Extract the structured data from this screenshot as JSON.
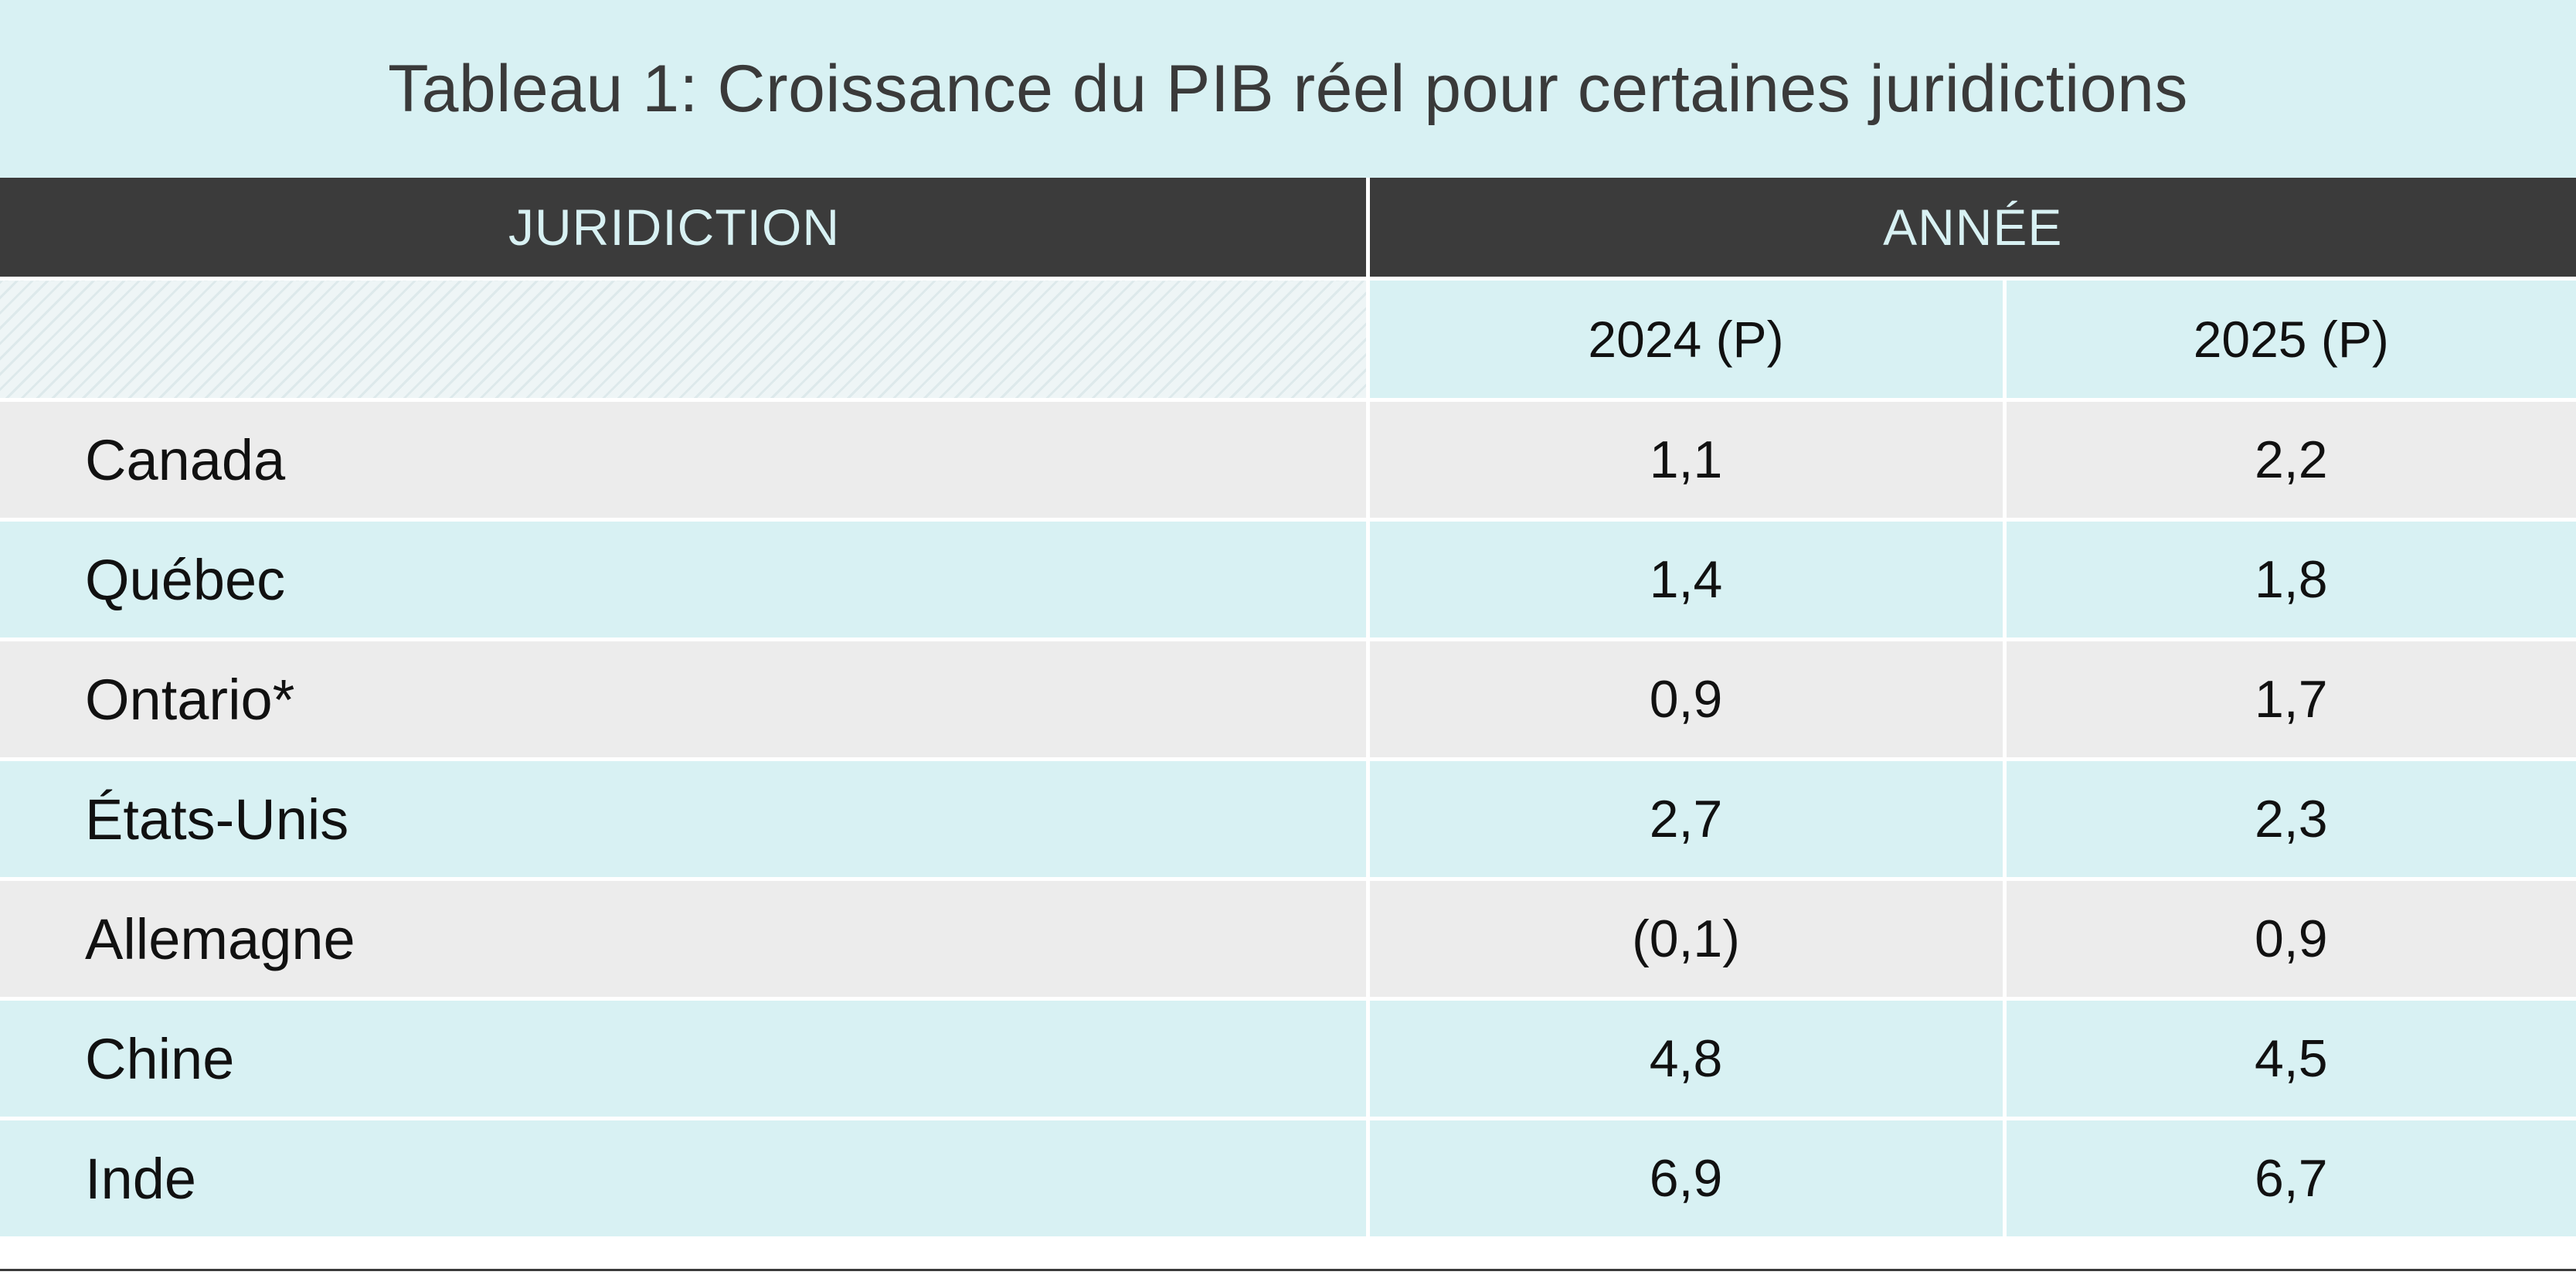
{
  "title": "Tableau 1: Croissance du PIB réel pour certaines juridictions",
  "header": {
    "jurisdiction": "JURIDICTION",
    "year": "ANNÉE",
    "col_2024": "2024 (P)",
    "col_2025": "2025 (P)"
  },
  "rows": [
    {
      "name": "Canada",
      "y2024": "1,1",
      "y2025": "2,2"
    },
    {
      "name": "Québec",
      "y2024": "1,4",
      "y2025": "1,8"
    },
    {
      "name": "Ontario*",
      "y2024": "0,9",
      "y2025": "1,7"
    },
    {
      "name": "États-Unis",
      "y2024": "2,7",
      "y2025": "2,3"
    },
    {
      "name": "Allemagne",
      "y2024": "(0,1)",
      "y2025": "0,9"
    },
    {
      "name": "Chine",
      "y2024": "4,8",
      "y2025": "4,5"
    },
    {
      "name": "Inde",
      "y2024": "6,9",
      "y2025": "6,7"
    }
  ],
  "colors": {
    "header_bg": "#3b3b3b",
    "header_text": "#d8f1f3",
    "row_light_blue": "#d8f1f3",
    "row_grey": "#ececec",
    "title_text": "#3a3a3a"
  }
}
